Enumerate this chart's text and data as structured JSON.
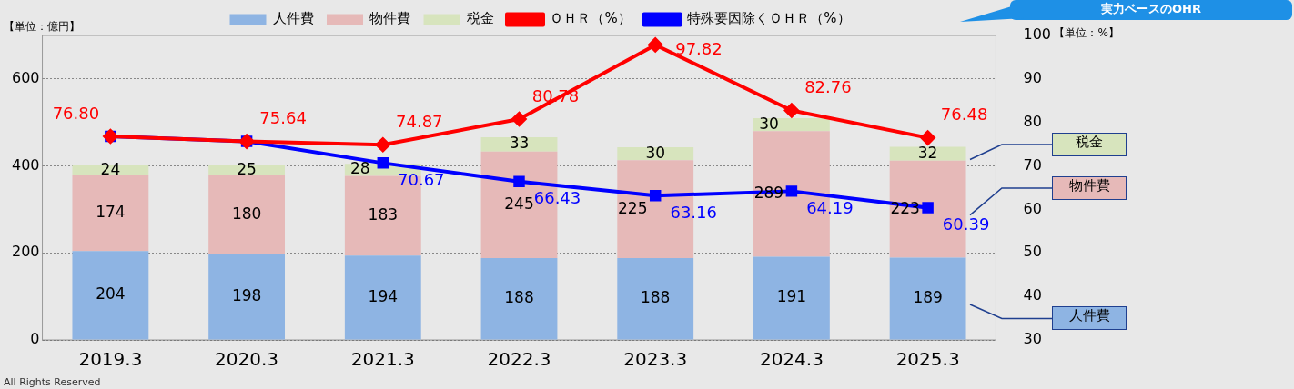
{
  "chart_data": {
    "type": "bar",
    "stacked": true,
    "categories": [
      "2019.3",
      "2020.3",
      "2021.3",
      "2022.3",
      "2023.3",
      "2024.3",
      "2025.3"
    ],
    "ylabel": "【単位：億円】",
    "y2label": "【単位：%】",
    "ylim": [
      0,
      700
    ],
    "yticks": [
      0,
      200,
      400,
      600
    ],
    "y2lim": [
      30,
      100
    ],
    "y2ticks": [
      30,
      40,
      50,
      60,
      70,
      80,
      90,
      100
    ],
    "grid": "y",
    "legend": "top",
    "annotations": [
      "実力ベースのOHR",
      "All Rights Reserved"
    ],
    "series": [
      {
        "name": "人件費",
        "color": "#8eb4e3",
        "values": [
          204,
          198,
          194,
          188,
          188,
          191,
          189
        ],
        "value_labels": [
          "204",
          "198",
          "194",
          "188",
          "188",
          "191",
          "189"
        ]
      },
      {
        "name": "物件費",
        "color": "#e6b9b8",
        "values": [
          174,
          180,
          183,
          245,
          225,
          289,
          223
        ],
        "value_labels": [
          "174",
          "180",
          "183",
          "245",
          "225",
          "289",
          "223"
        ]
      },
      {
        "name": "税金",
        "color": "#d7e4bd",
        "values": [
          24,
          25,
          28,
          33,
          30,
          30,
          32
        ],
        "value_labels": [
          "24",
          "25",
          "28",
          "33",
          "30",
          "30",
          "32"
        ]
      },
      {
        "name": "ＯＨＲ（%）",
        "type": "line",
        "axis": "y2",
        "marker": "diamond",
        "color": "#ff0000",
        "values": [
          76.8,
          75.64,
          74.87,
          80.78,
          97.82,
          82.76,
          76.48
        ],
        "value_labels": [
          "76.80",
          "75.64",
          "74.87",
          "80.78",
          "97.82",
          "82.76",
          "76.48"
        ]
      },
      {
        "name": "特殊要因除くＯＨＲ（%）",
        "type": "line",
        "axis": "y2",
        "marker": "square",
        "color": "#0000ff",
        "values": [
          76.8,
          75.64,
          70.67,
          66.43,
          63.16,
          64.19,
          60.39
        ],
        "value_labels": [
          null,
          null,
          "70.67",
          "66.43",
          "63.16",
          "64.19",
          "60.39"
        ]
      }
    ]
  }
}
